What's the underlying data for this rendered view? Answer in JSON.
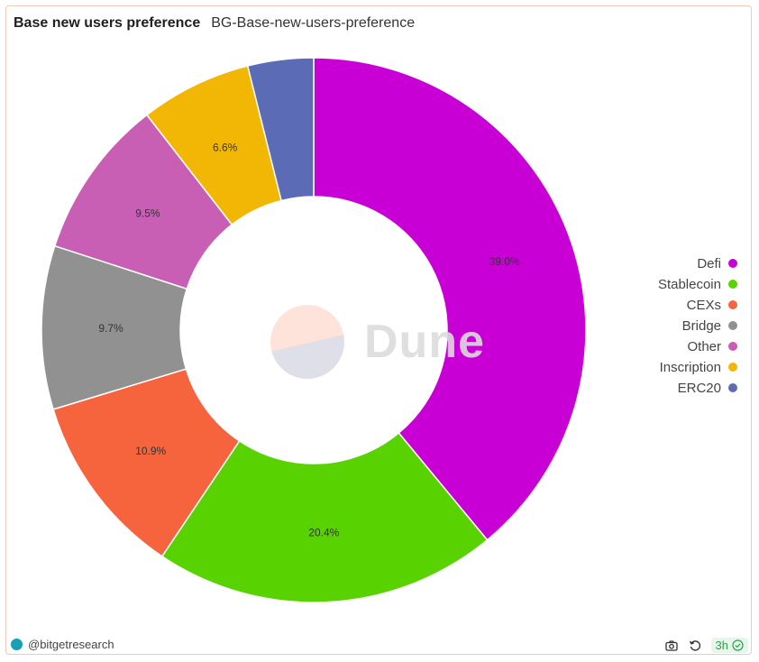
{
  "header": {
    "title": "Base new users preference",
    "subtitle": "BG-Base-new-users-preference"
  },
  "chart_data": {
    "type": "pie",
    "donut": true,
    "categories": [
      "Defi",
      "Stablecoin",
      "CEXs",
      "Bridge",
      "Other",
      "Inscription",
      "ERC20"
    ],
    "values": [
      39.0,
      20.4,
      10.9,
      9.7,
      9.5,
      6.6,
      3.9
    ],
    "labels": [
      "39.0%",
      "20.4%",
      "10.9%",
      "9.7%",
      "9.5%",
      "6.6%",
      ""
    ],
    "colors": [
      "#c900d6",
      "#58d200",
      "#f5643c",
      "#919191",
      "#c95fb5",
      "#f2b705",
      "#5b6bb5"
    ],
    "legend_position": "right"
  },
  "legend": {
    "items": [
      {
        "label": "Defi",
        "color": "#c900d6"
      },
      {
        "label": "Stablecoin",
        "color": "#58d200"
      },
      {
        "label": "CEXs",
        "color": "#f5643c"
      },
      {
        "label": "Bridge",
        "color": "#919191"
      },
      {
        "label": "Other",
        "color": "#c95fb5"
      },
      {
        "label": "Inscription",
        "color": "#f2b705"
      },
      {
        "label": "ERC20",
        "color": "#5b6bb5"
      }
    ]
  },
  "watermark": {
    "text": "Dune"
  },
  "footer": {
    "handle": "@bitgetresearch",
    "refresh_badge": "3h",
    "icons": [
      "camera-icon",
      "refresh-icon",
      "check-circle-icon"
    ]
  }
}
